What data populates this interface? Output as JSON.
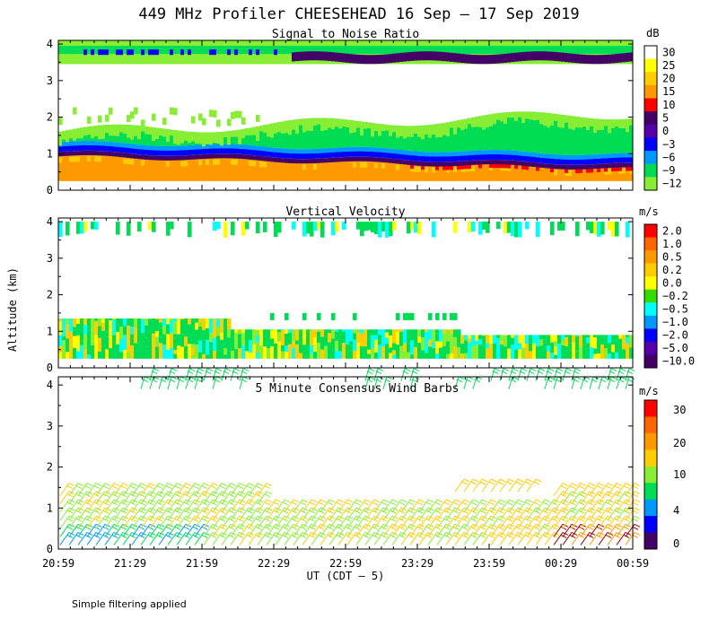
{
  "title": "449 MHz Profiler CHEESEHEAD 16 Sep – 17 Sep 2019",
  "y_axis_label": "Altitude (km)",
  "x_axis_label": "UT  (CDT – 5)",
  "footnote": "Simple filtering applied",
  "colors": {
    "white": "#ffffff",
    "yellow": "#ffff00",
    "gold": "#ffcc00",
    "orange": "#ff9900",
    "red": "#ff0000",
    "dark_purple": "#440066",
    "purple": "#5500aa",
    "blue": "#0000ff",
    "light_blue": "#0099ff",
    "cyan": "#00ffff",
    "green": "#00dd55",
    "lime": "#88ee33",
    "dark_red": "#990000"
  },
  "chart_data": [
    {
      "type": "heatmap",
      "title": "Signal to Noise Ratio",
      "x_ticks": [
        "20:59",
        "21:29",
        "21:59",
        "22:29",
        "22:59",
        "23:29",
        "23:59",
        "00:29",
        "00:59"
      ],
      "ylim": [
        0,
        4
      ],
      "y_ticks": [
        "0",
        "1",
        "2",
        "3",
        "4"
      ],
      "colorbar": {
        "unit": "dB",
        "labels": [
          "30",
          "25",
          "20",
          "15",
          "10",
          "5",
          "0",
          "−3",
          "−6",
          "−9",
          "−12"
        ],
        "colors": [
          "#ffffff",
          "#ffff00",
          "#ffcc00",
          "#ff9900",
          "#ff0000",
          "#440066",
          "#5500aa",
          "#0000ff",
          "#0099ff",
          "#00dd55",
          "#88ee33"
        ]
      },
      "layers": [
        {
          "y0": 0.25,
          "y1": 0.95,
          "value_db": 15
        },
        {
          "y0": 0.95,
          "y1": 1.05,
          "value_db": 5
        },
        {
          "y0": 1.05,
          "y1": 1.25,
          "value_db": -3
        },
        {
          "y0": 1.25,
          "y1": 1.9,
          "value_db": -12
        },
        {
          "y0": 1.9,
          "y1": 2.4,
          "value_db": 30
        },
        {
          "y0": 3.05,
          "y1": 3.6,
          "value_db": 30
        },
        {
          "y0": 3.6,
          "y1": 4.1,
          "value_db": -9
        }
      ]
    },
    {
      "type": "heatmap",
      "title": "Vertical Velocity",
      "x_ticks": [
        "20:59",
        "21:29",
        "21:59",
        "22:29",
        "22:59",
        "23:29",
        "23:59",
        "00:29",
        "00:59"
      ],
      "ylim": [
        0,
        4
      ],
      "y_ticks": [
        "0",
        "1",
        "2",
        "3",
        "4"
      ],
      "colorbar": {
        "unit": "m/s",
        "labels": [
          "2.0",
          "1.0",
          "0.5",
          "0.2",
          "0.0",
          "−0.2",
          "−0.5",
          "−1.0",
          "−2.0",
          "−5.0",
          "−10.0"
        ],
        "colors": [
          "#ff0000",
          "#ff6600",
          "#ff9900",
          "#ffcc00",
          "#ffff00",
          "#33dd00",
          "#00ffff",
          "#0099ff",
          "#0000ff",
          "#5500aa",
          "#440066"
        ]
      },
      "layers": [
        {
          "y0": 0.25,
          "y1": 1.35,
          "value_ms": -0.2
        },
        {
          "y0": 3.55,
          "y1": 4.05,
          "value_ms": -0.2
        }
      ]
    },
    {
      "type": "scatter",
      "title": "5 Minute Consensus Wind Barbs",
      "x_ticks": [
        "20:59",
        "21:29",
        "21:59",
        "22:29",
        "22:59",
        "23:29",
        "23:59",
        "00:29",
        "00:59"
      ],
      "ylim": [
        0,
        4.2
      ],
      "y_ticks": [
        "0",
        "1",
        "2",
        "3",
        "4"
      ],
      "colorbar": {
        "unit": "m/s",
        "labels": [
          "30",
          "20",
          "10",
          "4",
          "0"
        ],
        "colors": [
          "#ff0000",
          "#ff6600",
          "#ff9900",
          "#ffcc00",
          "#88ee33",
          "#00dd55",
          "#0099ff",
          "#0000ff",
          "#440066"
        ]
      },
      "barb_rows_km": [
        0.1,
        0.3,
        0.5,
        0.7,
        0.9,
        1.1,
        1.3
      ],
      "upper_rows_km": [
        3.9,
        4.1
      ],
      "mid_rows_km": [
        1.4,
        1.5
      ]
    }
  ]
}
